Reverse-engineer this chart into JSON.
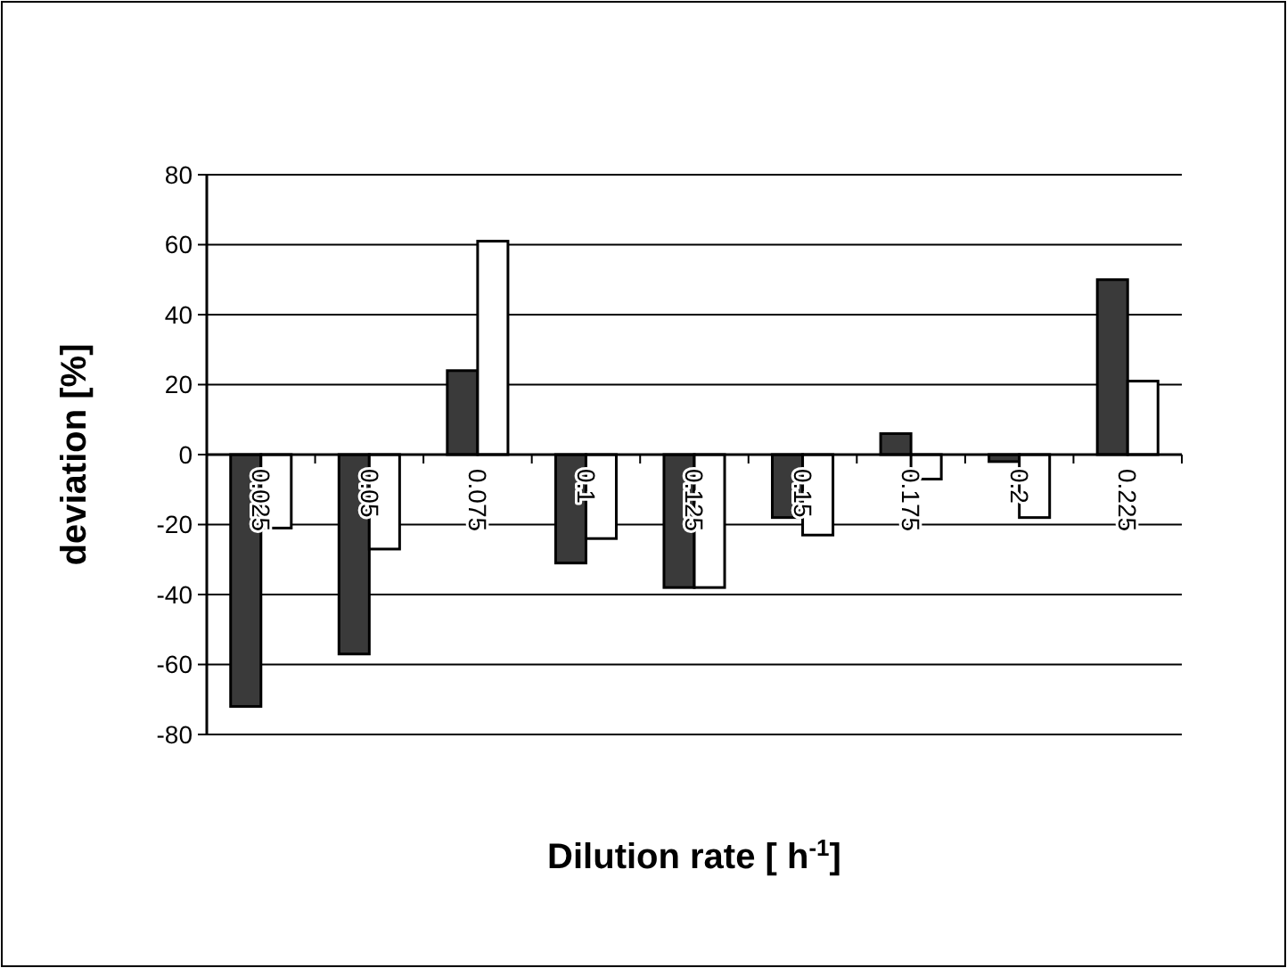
{
  "chart_data": {
    "type": "bar",
    "xlabel": "Dilution rate [ h$^{-1}$]",
    "ylabel": "deviation [%]",
    "categories": [
      "0.025",
      "0.05",
      "0.075",
      "0.1",
      "0.125",
      "0.15",
      "0.175",
      "0.2",
      "0.225"
    ],
    "series": [
      {
        "color": "#3a3a3a",
        "values": [
          -72,
          -57,
          24,
          -31,
          -38,
          -18,
          6,
          -2,
          50
        ]
      },
      {
        "color": "#ffffff",
        "values": [
          -21,
          -27,
          61,
          -24,
          -38,
          -23,
          -7,
          -18,
          21
        ]
      }
    ],
    "ylim": [
      -80,
      80
    ],
    "yticks": [
      -80,
      -60,
      -40,
      -20,
      0,
      20,
      40,
      60,
      80
    ],
    "grid": "y"
  }
}
